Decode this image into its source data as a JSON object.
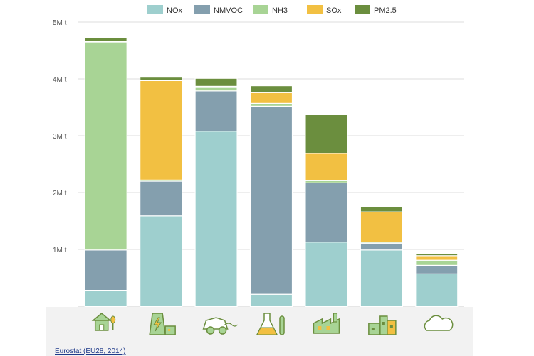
{
  "chart_data": {
    "type": "bar",
    "stacked": true,
    "categories": [
      "",
      "",
      "",
      "",
      "",
      "",
      ""
    ],
    "category_icons": [
      "agriculture-icon",
      "energy-production-icon",
      "road-transport-icon",
      "solvent-use-icon",
      "commercial-household-icon",
      "industry-icon",
      "other-icon"
    ],
    "series": [
      {
        "name": "NOx",
        "color": "#9ecfce",
        "values": [
          0.28,
          1.59,
          3.08,
          0.21,
          1.13,
          0.99,
          0.57
        ]
      },
      {
        "name": "NMVOC",
        "color": "#849fae",
        "values": [
          0.71,
          0.61,
          0.71,
          3.31,
          1.04,
          0.12,
          0.15
        ]
      },
      {
        "name": "NH3",
        "color": "#a8d495",
        "values": [
          3.66,
          0.02,
          0.06,
          0.05,
          0.04,
          0.02,
          0.09
        ]
      },
      {
        "name": "SOx",
        "color": "#f2c042",
        "values": [
          0.01,
          1.75,
          0.02,
          0.19,
          0.48,
          0.53,
          0.08
        ]
      },
      {
        "name": "PM2.5",
        "color": "#6b8e3e",
        "values": [
          0.06,
          0.06,
          0.14,
          0.12,
          0.68,
          0.09,
          0.04
        ]
      }
    ],
    "y_ticks": [
      "1M t",
      "2M t",
      "3M t",
      "4M t",
      "5M t"
    ],
    "ylim": [
      0,
      5
    ],
    "grid": true,
    "legend_position": "top",
    "title": "",
    "xlabel": "",
    "ylabel": ""
  },
  "source": {
    "label": "Eurostat (EU28, 2014)"
  },
  "colors": {
    "icon_fill": "#a8d495",
    "icon_stroke": "#6b8e3e",
    "icon_accent": "#f2c042",
    "footer_bg": "#f2f2f2"
  }
}
